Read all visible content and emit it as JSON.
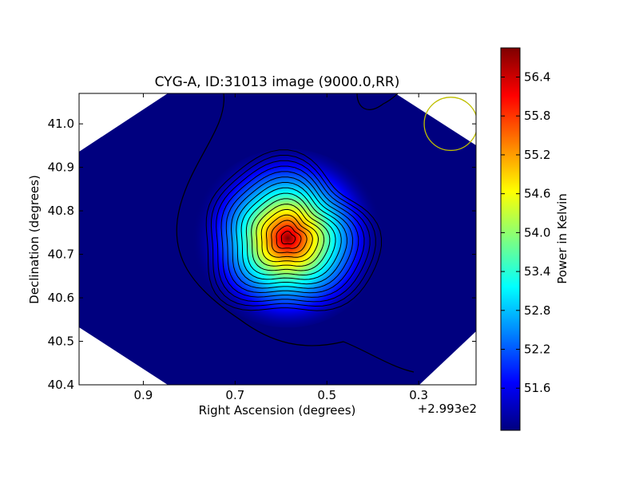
{
  "chart_data": {
    "type": "heatmap",
    "title": "CYG-A, ID:31013 image (9000.0,RR)",
    "xlabel": "Right Ascension (degrees)",
    "ylabel": "Declination (degrees)",
    "x_offset_label": "+2.993e2",
    "xlim": [
      1.04,
      0.175
    ],
    "ylim": [
      40.4,
      41.07
    ],
    "x_ticks": [
      {
        "value": 0.9,
        "label": "0.9"
      },
      {
        "value": 0.7,
        "label": "0.7"
      },
      {
        "value": 0.5,
        "label": "0.5"
      },
      {
        "value": 0.3,
        "label": "0.3"
      }
    ],
    "y_ticks": [
      {
        "value": 40.4,
        "label": "40.4"
      },
      {
        "value": 40.5,
        "label": "40.5"
      },
      {
        "value": 40.6,
        "label": "40.6"
      },
      {
        "value": 40.7,
        "label": "40.7"
      },
      {
        "value": 40.8,
        "label": "40.8"
      },
      {
        "value": 40.9,
        "label": "40.9"
      },
      {
        "value": 41.0,
        "label": "41.0"
      }
    ],
    "colorbar": {
      "label": "Power in Kelvin",
      "range": [
        50.95,
        56.85
      ],
      "ticks": [
        {
          "value": 51.6,
          "label": "51.6"
        },
        {
          "value": 52.2,
          "label": "52.2"
        },
        {
          "value": 52.8,
          "label": "52.8"
        },
        {
          "value": 53.4,
          "label": "53.4"
        },
        {
          "value": 54.0,
          "label": "54.0"
        },
        {
          "value": 54.6,
          "label": "54.6"
        },
        {
          "value": 55.2,
          "label": "55.2"
        },
        {
          "value": 55.8,
          "label": "55.8"
        },
        {
          "value": 56.4,
          "label": "56.4"
        }
      ],
      "colormap": [
        "#00007f",
        "#0000ff",
        "#007fff",
        "#00ffff",
        "#7fff7f",
        "#ffff00",
        "#ff7f00",
        "#ff0000",
        "#7f0000"
      ]
    },
    "source_peak": {
      "ra": 0.585,
      "dec": 40.737,
      "value": 56.8
    },
    "background_level": 51.1,
    "contour_count": 16,
    "beam_circle": {
      "ra": 0.23,
      "dec": 41.0,
      "radius_deg": 0.058,
      "color": "#bfbf00"
    },
    "contour_color": "#000000",
    "no_data_color": "#ffffff"
  }
}
